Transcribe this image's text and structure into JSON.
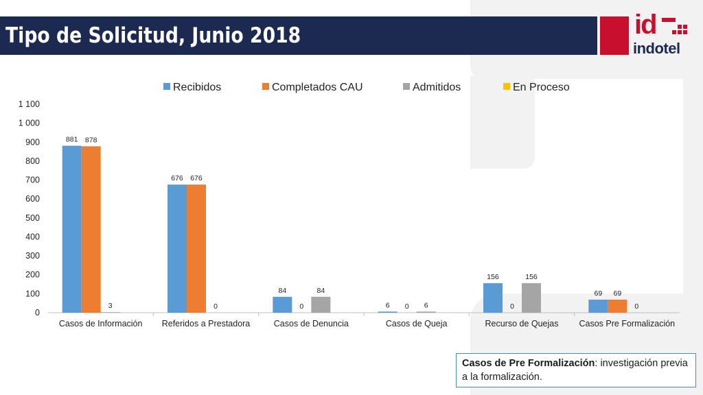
{
  "header": {
    "title": "Tipo de Solicitud, Junio 2018",
    "logo": {
      "mark": "id",
      "word": "indotel"
    }
  },
  "note": {
    "term": "Casos de Pre Formalización",
    "definition": ": investigación previa a la formalización."
  },
  "chart_data": {
    "type": "bar",
    "title": "",
    "xlabel": "",
    "ylabel": "",
    "ylim": [
      0,
      1100
    ],
    "ytick_step": 100,
    "ytick_labels": [
      "0",
      "100",
      "200",
      "300",
      "400",
      "500",
      "600",
      "700",
      "800",
      "900",
      "1 000",
      "1 100"
    ],
    "grid": false,
    "legend_position": "top",
    "categories": [
      "Casos de Información",
      "Referidos a Prestadora",
      "Casos de Denuncia",
      "Casos de Queja",
      "Recurso de Quejas",
      "Casos Pre Formalización"
    ],
    "series": [
      {
        "name": "Recibidos",
        "color": "#5b9bd5",
        "values": [
          881,
          676,
          84,
          6,
          156,
          69
        ]
      },
      {
        "name": "Completados CAU",
        "color": "#ed7d31",
        "values": [
          878,
          676,
          0,
          0,
          0,
          69
        ]
      },
      {
        "name": "Admitidos",
        "color": "#a5a5a5",
        "values": [
          3,
          0,
          84,
          6,
          156,
          0
        ]
      },
      {
        "name": "En Proceso",
        "color": "#ffc000",
        "values": [
          0,
          0,
          0,
          0,
          0,
          0
        ]
      }
    ]
  }
}
